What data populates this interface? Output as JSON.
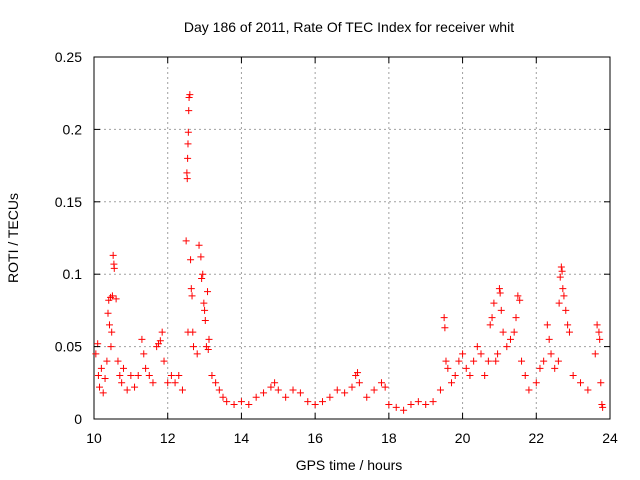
{
  "chart_data": {
    "type": "scatter",
    "title": "Day 186 of 2011, Rate Of TEC Index for receiver whit",
    "xlabel": "GPS time / hours",
    "ylabel": "ROTI / TECUs",
    "xlim": [
      10,
      24
    ],
    "ylim": [
      0,
      0.25
    ],
    "xticks": [
      10,
      12,
      14,
      16,
      18,
      20,
      22,
      24
    ],
    "xtick_labels": [
      "10",
      "12",
      "14",
      "16",
      "18",
      "20",
      "22",
      "24"
    ],
    "yticks": [
      0,
      0.05,
      0.1,
      0.15,
      0.2,
      0.25
    ],
    "ytick_labels": [
      "0",
      "0.05",
      "0.1",
      "0.15",
      "0.2",
      "0.25"
    ],
    "grid": true,
    "marker": "+",
    "color": "#ff0000",
    "series": [
      {
        "name": "ROTI",
        "points": [
          [
            10.05,
            0.045
          ],
          [
            10.1,
            0.052
          ],
          [
            10.12,
            0.03
          ],
          [
            10.15,
            0.022
          ],
          [
            10.2,
            0.035
          ],
          [
            10.25,
            0.018
          ],
          [
            10.3,
            0.028
          ],
          [
            10.35,
            0.04
          ],
          [
            10.38,
            0.073
          ],
          [
            10.4,
            0.082
          ],
          [
            10.42,
            0.065
          ],
          [
            10.45,
            0.084
          ],
          [
            10.5,
            0.085
          ],
          [
            10.52,
            0.113
          ],
          [
            10.54,
            0.107
          ],
          [
            10.55,
            0.104
          ],
          [
            10.48,
            0.06
          ],
          [
            10.46,
            0.05
          ],
          [
            10.6,
            0.083
          ],
          [
            10.65,
            0.04
          ],
          [
            10.7,
            0.03
          ],
          [
            10.75,
            0.025
          ],
          [
            10.8,
            0.035
          ],
          [
            10.9,
            0.02
          ],
          [
            11.0,
            0.03
          ],
          [
            11.1,
            0.022
          ],
          [
            11.2,
            0.03
          ],
          [
            11.3,
            0.055
          ],
          [
            11.35,
            0.045
          ],
          [
            11.4,
            0.035
          ],
          [
            11.5,
            0.03
          ],
          [
            11.6,
            0.025
          ],
          [
            11.7,
            0.05
          ],
          [
            11.75,
            0.052
          ],
          [
            11.8,
            0.054
          ],
          [
            11.85,
            0.06
          ],
          [
            11.9,
            0.04
          ],
          [
            12.0,
            0.025
          ],
          [
            12.1,
            0.03
          ],
          [
            12.2,
            0.025
          ],
          [
            12.3,
            0.03
          ],
          [
            12.4,
            0.02
          ],
          [
            12.5,
            0.123
          ],
          [
            12.52,
            0.17
          ],
          [
            12.53,
            0.166
          ],
          [
            12.54,
            0.18
          ],
          [
            12.55,
            0.19
          ],
          [
            12.56,
            0.198
          ],
          [
            12.57,
            0.213
          ],
          [
            12.58,
            0.222
          ],
          [
            12.6,
            0.224
          ],
          [
            12.55,
            0.06
          ],
          [
            12.62,
            0.11
          ],
          [
            12.64,
            0.09
          ],
          [
            12.66,
            0.085
          ],
          [
            12.68,
            0.06
          ],
          [
            12.7,
            0.05
          ],
          [
            12.8,
            0.045
          ],
          [
            12.85,
            0.12
          ],
          [
            12.9,
            0.112
          ],
          [
            12.92,
            0.097
          ],
          [
            12.95,
            0.1
          ],
          [
            12.98,
            0.08
          ],
          [
            13.0,
            0.075
          ],
          [
            13.02,
            0.068
          ],
          [
            13.05,
            0.05
          ],
          [
            13.08,
            0.088
          ],
          [
            13.1,
            0.048
          ],
          [
            13.12,
            0.055
          ],
          [
            13.2,
            0.03
          ],
          [
            13.3,
            0.025
          ],
          [
            13.4,
            0.02
          ],
          [
            13.5,
            0.015
          ],
          [
            13.6,
            0.012
          ],
          [
            13.8,
            0.01
          ],
          [
            14.0,
            0.012
          ],
          [
            14.2,
            0.01
          ],
          [
            14.4,
            0.015
          ],
          [
            14.6,
            0.018
          ],
          [
            14.8,
            0.022
          ],
          [
            14.9,
            0.025
          ],
          [
            15.0,
            0.02
          ],
          [
            15.2,
            0.015
          ],
          [
            15.4,
            0.02
          ],
          [
            15.6,
            0.018
          ],
          [
            15.8,
            0.012
          ],
          [
            16.0,
            0.01
          ],
          [
            16.2,
            0.012
          ],
          [
            16.4,
            0.015
          ],
          [
            16.6,
            0.02
          ],
          [
            16.8,
            0.018
          ],
          [
            17.0,
            0.022
          ],
          [
            17.1,
            0.03
          ],
          [
            17.15,
            0.032
          ],
          [
            17.2,
            0.025
          ],
          [
            17.4,
            0.015
          ],
          [
            17.6,
            0.02
          ],
          [
            17.8,
            0.025
          ],
          [
            17.9,
            0.022
          ],
          [
            18.0,
            0.01
          ],
          [
            18.2,
            0.008
          ],
          [
            18.4,
            0.006
          ],
          [
            18.6,
            0.01
          ],
          [
            18.8,
            0.012
          ],
          [
            19.0,
            0.01
          ],
          [
            19.2,
            0.012
          ],
          [
            19.4,
            0.02
          ],
          [
            19.5,
            0.07
          ],
          [
            19.52,
            0.063
          ],
          [
            19.55,
            0.04
          ],
          [
            19.6,
            0.035
          ],
          [
            19.7,
            0.025
          ],
          [
            19.8,
            0.03
          ],
          [
            19.9,
            0.04
          ],
          [
            20.0,
            0.045
          ],
          [
            20.1,
            0.035
          ],
          [
            20.2,
            0.03
          ],
          [
            20.3,
            0.04
          ],
          [
            20.4,
            0.05
          ],
          [
            20.5,
            0.045
          ],
          [
            20.6,
            0.03
          ],
          [
            20.7,
            0.04
          ],
          [
            20.75,
            0.065
          ],
          [
            20.8,
            0.07
          ],
          [
            20.85,
            0.08
          ],
          [
            20.9,
            0.04
          ],
          [
            20.95,
            0.045
          ],
          [
            21.0,
            0.09
          ],
          [
            21.02,
            0.087
          ],
          [
            21.05,
            0.075
          ],
          [
            21.1,
            0.06
          ],
          [
            21.2,
            0.05
          ],
          [
            21.3,
            0.055
          ],
          [
            21.4,
            0.06
          ],
          [
            21.45,
            0.07
          ],
          [
            21.5,
            0.085
          ],
          [
            21.55,
            0.082
          ],
          [
            21.6,
            0.04
          ],
          [
            21.7,
            0.03
          ],
          [
            21.8,
            0.02
          ],
          [
            22.0,
            0.025
          ],
          [
            22.1,
            0.035
          ],
          [
            22.2,
            0.04
          ],
          [
            22.3,
            0.065
          ],
          [
            22.35,
            0.055
          ],
          [
            22.4,
            0.045
          ],
          [
            22.5,
            0.035
          ],
          [
            22.6,
            0.04
          ],
          [
            22.62,
            0.08
          ],
          [
            22.65,
            0.098
          ],
          [
            22.68,
            0.105
          ],
          [
            22.7,
            0.102
          ],
          [
            22.72,
            0.09
          ],
          [
            22.75,
            0.085
          ],
          [
            22.8,
            0.075
          ],
          [
            22.85,
            0.065
          ],
          [
            22.9,
            0.06
          ],
          [
            23.0,
            0.03
          ],
          [
            23.2,
            0.025
          ],
          [
            23.4,
            0.02
          ],
          [
            23.6,
            0.045
          ],
          [
            23.65,
            0.065
          ],
          [
            23.7,
            0.06
          ],
          [
            23.72,
            0.055
          ],
          [
            23.75,
            0.025
          ],
          [
            23.78,
            0.01
          ],
          [
            23.8,
            0.008
          ]
        ]
      }
    ]
  }
}
